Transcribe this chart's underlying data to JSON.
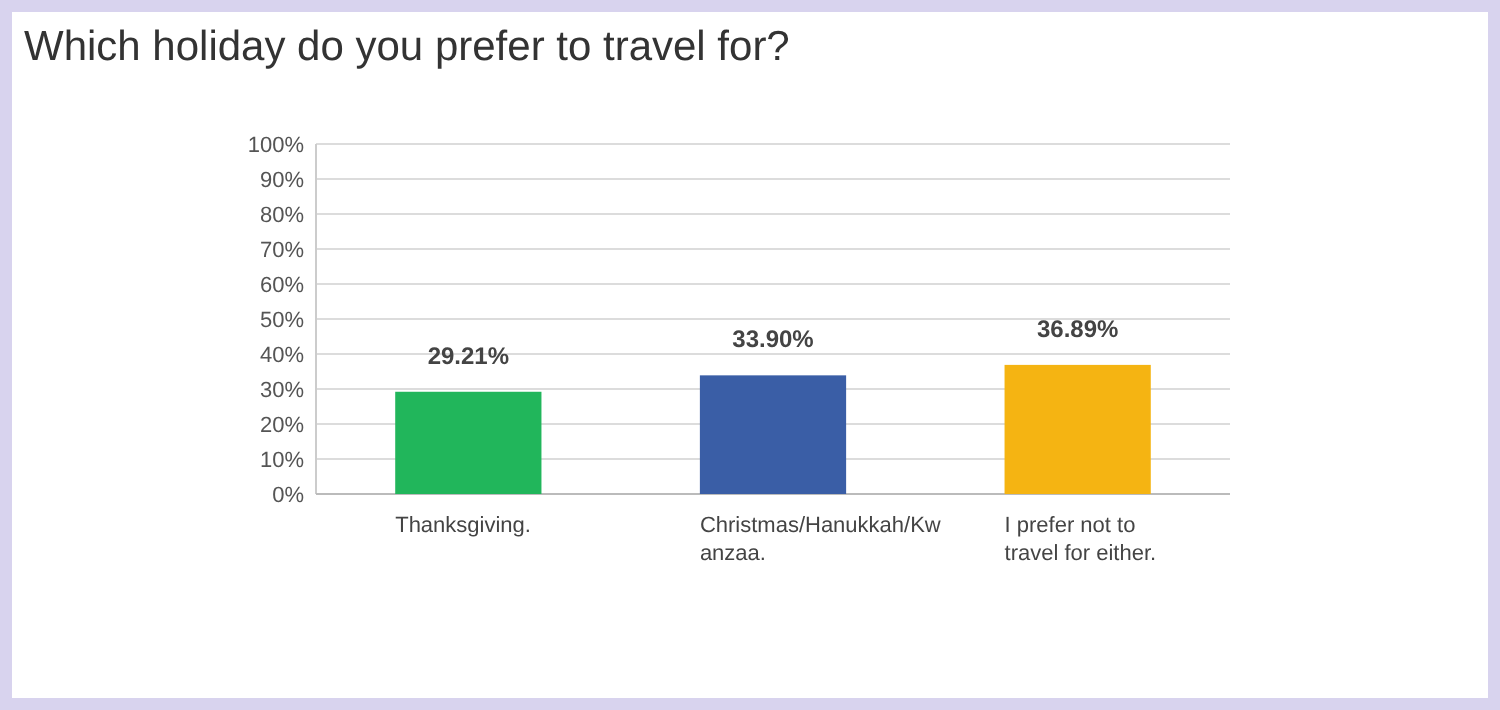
{
  "chart_data": {
    "type": "bar",
    "title": "Which holiday do you prefer to travel for?",
    "categories": [
      "Thanksgiving.",
      "Christmas/Hanukkah/Kwanzaa.",
      "I prefer not to travel for either."
    ],
    "values": [
      29.21,
      33.9,
      36.89
    ],
    "colors": [
      "#21b65b",
      "#3a5ea6",
      "#f5b412"
    ],
    "value_labels": [
      "29.21%",
      "33.90%",
      "36.89%"
    ],
    "ylim": [
      0,
      100
    ],
    "yticks": [
      {
        "value": 0,
        "label": "0%"
      },
      {
        "value": 10,
        "label": "10%"
      },
      {
        "value": 20,
        "label": "20%"
      },
      {
        "value": 30,
        "label": "30%"
      },
      {
        "value": 40,
        "label": "40%"
      },
      {
        "value": 50,
        "label": "50%"
      },
      {
        "value": 60,
        "label": "60%"
      },
      {
        "value": 70,
        "label": "70%"
      },
      {
        "value": 80,
        "label": "80%"
      },
      {
        "value": 90,
        "label": "90%"
      },
      {
        "value": 100,
        "label": "100%"
      }
    ],
    "grid": "y"
  }
}
